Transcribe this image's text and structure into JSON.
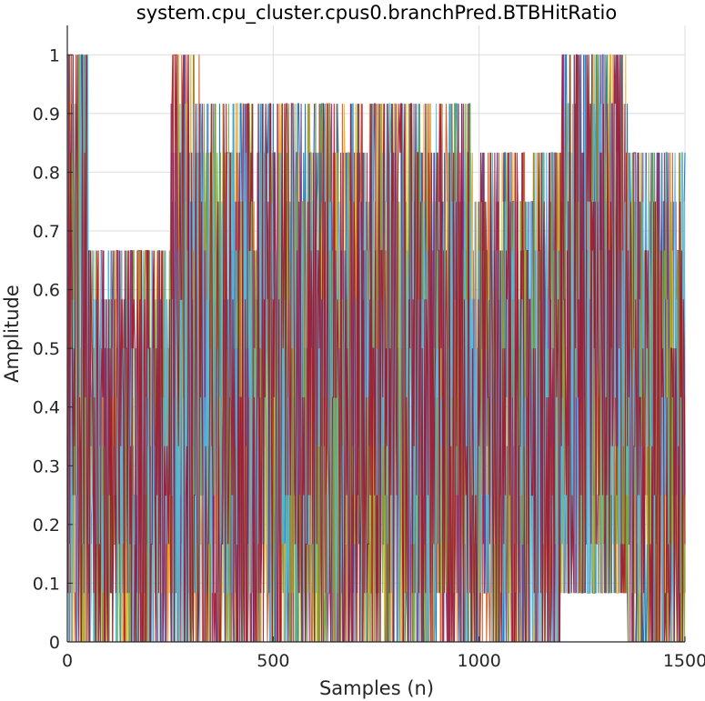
{
  "chart_data": {
    "type": "line",
    "title": "system.cpu_cluster.cpus0.branchPred.BTBHitRatio",
    "xlabel": "Samples (n)",
    "ylabel": "Amplitude",
    "xlim": [
      0,
      1500
    ],
    "ylim": [
      0,
      1.05
    ],
    "grid": true,
    "legend": "none",
    "x_ticks": [
      0,
      500,
      1000,
      1500
    ],
    "x_tick_labels": [
      "0",
      "500",
      "1000",
      "1500"
    ],
    "y_ticks": [
      0,
      0.1,
      0.2,
      0.3,
      0.4,
      0.5,
      0.6,
      0.7,
      0.8,
      0.9,
      1
    ],
    "y_tick_labels": [
      "0",
      "0.1",
      "0.2",
      "0.3",
      "0.4",
      "0.5",
      "0.6",
      "0.7",
      "0.8",
      "0.9",
      "1"
    ],
    "series_colors": [
      "#0072BD",
      "#D95319",
      "#EDB120",
      "#7E2F8E",
      "#77AC30",
      "#4DBEEE",
      "#A2142F"
    ],
    "segments": [
      {
        "x_start": 0,
        "x_end": 50,
        "low": 0.0,
        "high": 1.0
      },
      {
        "x_start": 50,
        "x_end": 250,
        "low": 0.0,
        "high": 0.67
      },
      {
        "x_start": 250,
        "x_end": 320,
        "low": 0.0,
        "high": 1.0
      },
      {
        "x_start": 320,
        "x_end": 980,
        "low": 0.0,
        "high": 0.9
      },
      {
        "x_start": 980,
        "x_end": 1200,
        "low": 0.0,
        "high": 0.83
      },
      {
        "x_start": 1200,
        "x_end": 1360,
        "low": 0.05,
        "high": 1.0
      },
      {
        "x_start": 1360,
        "x_end": 1500,
        "low": 0.0,
        "high": 0.8
      }
    ]
  }
}
